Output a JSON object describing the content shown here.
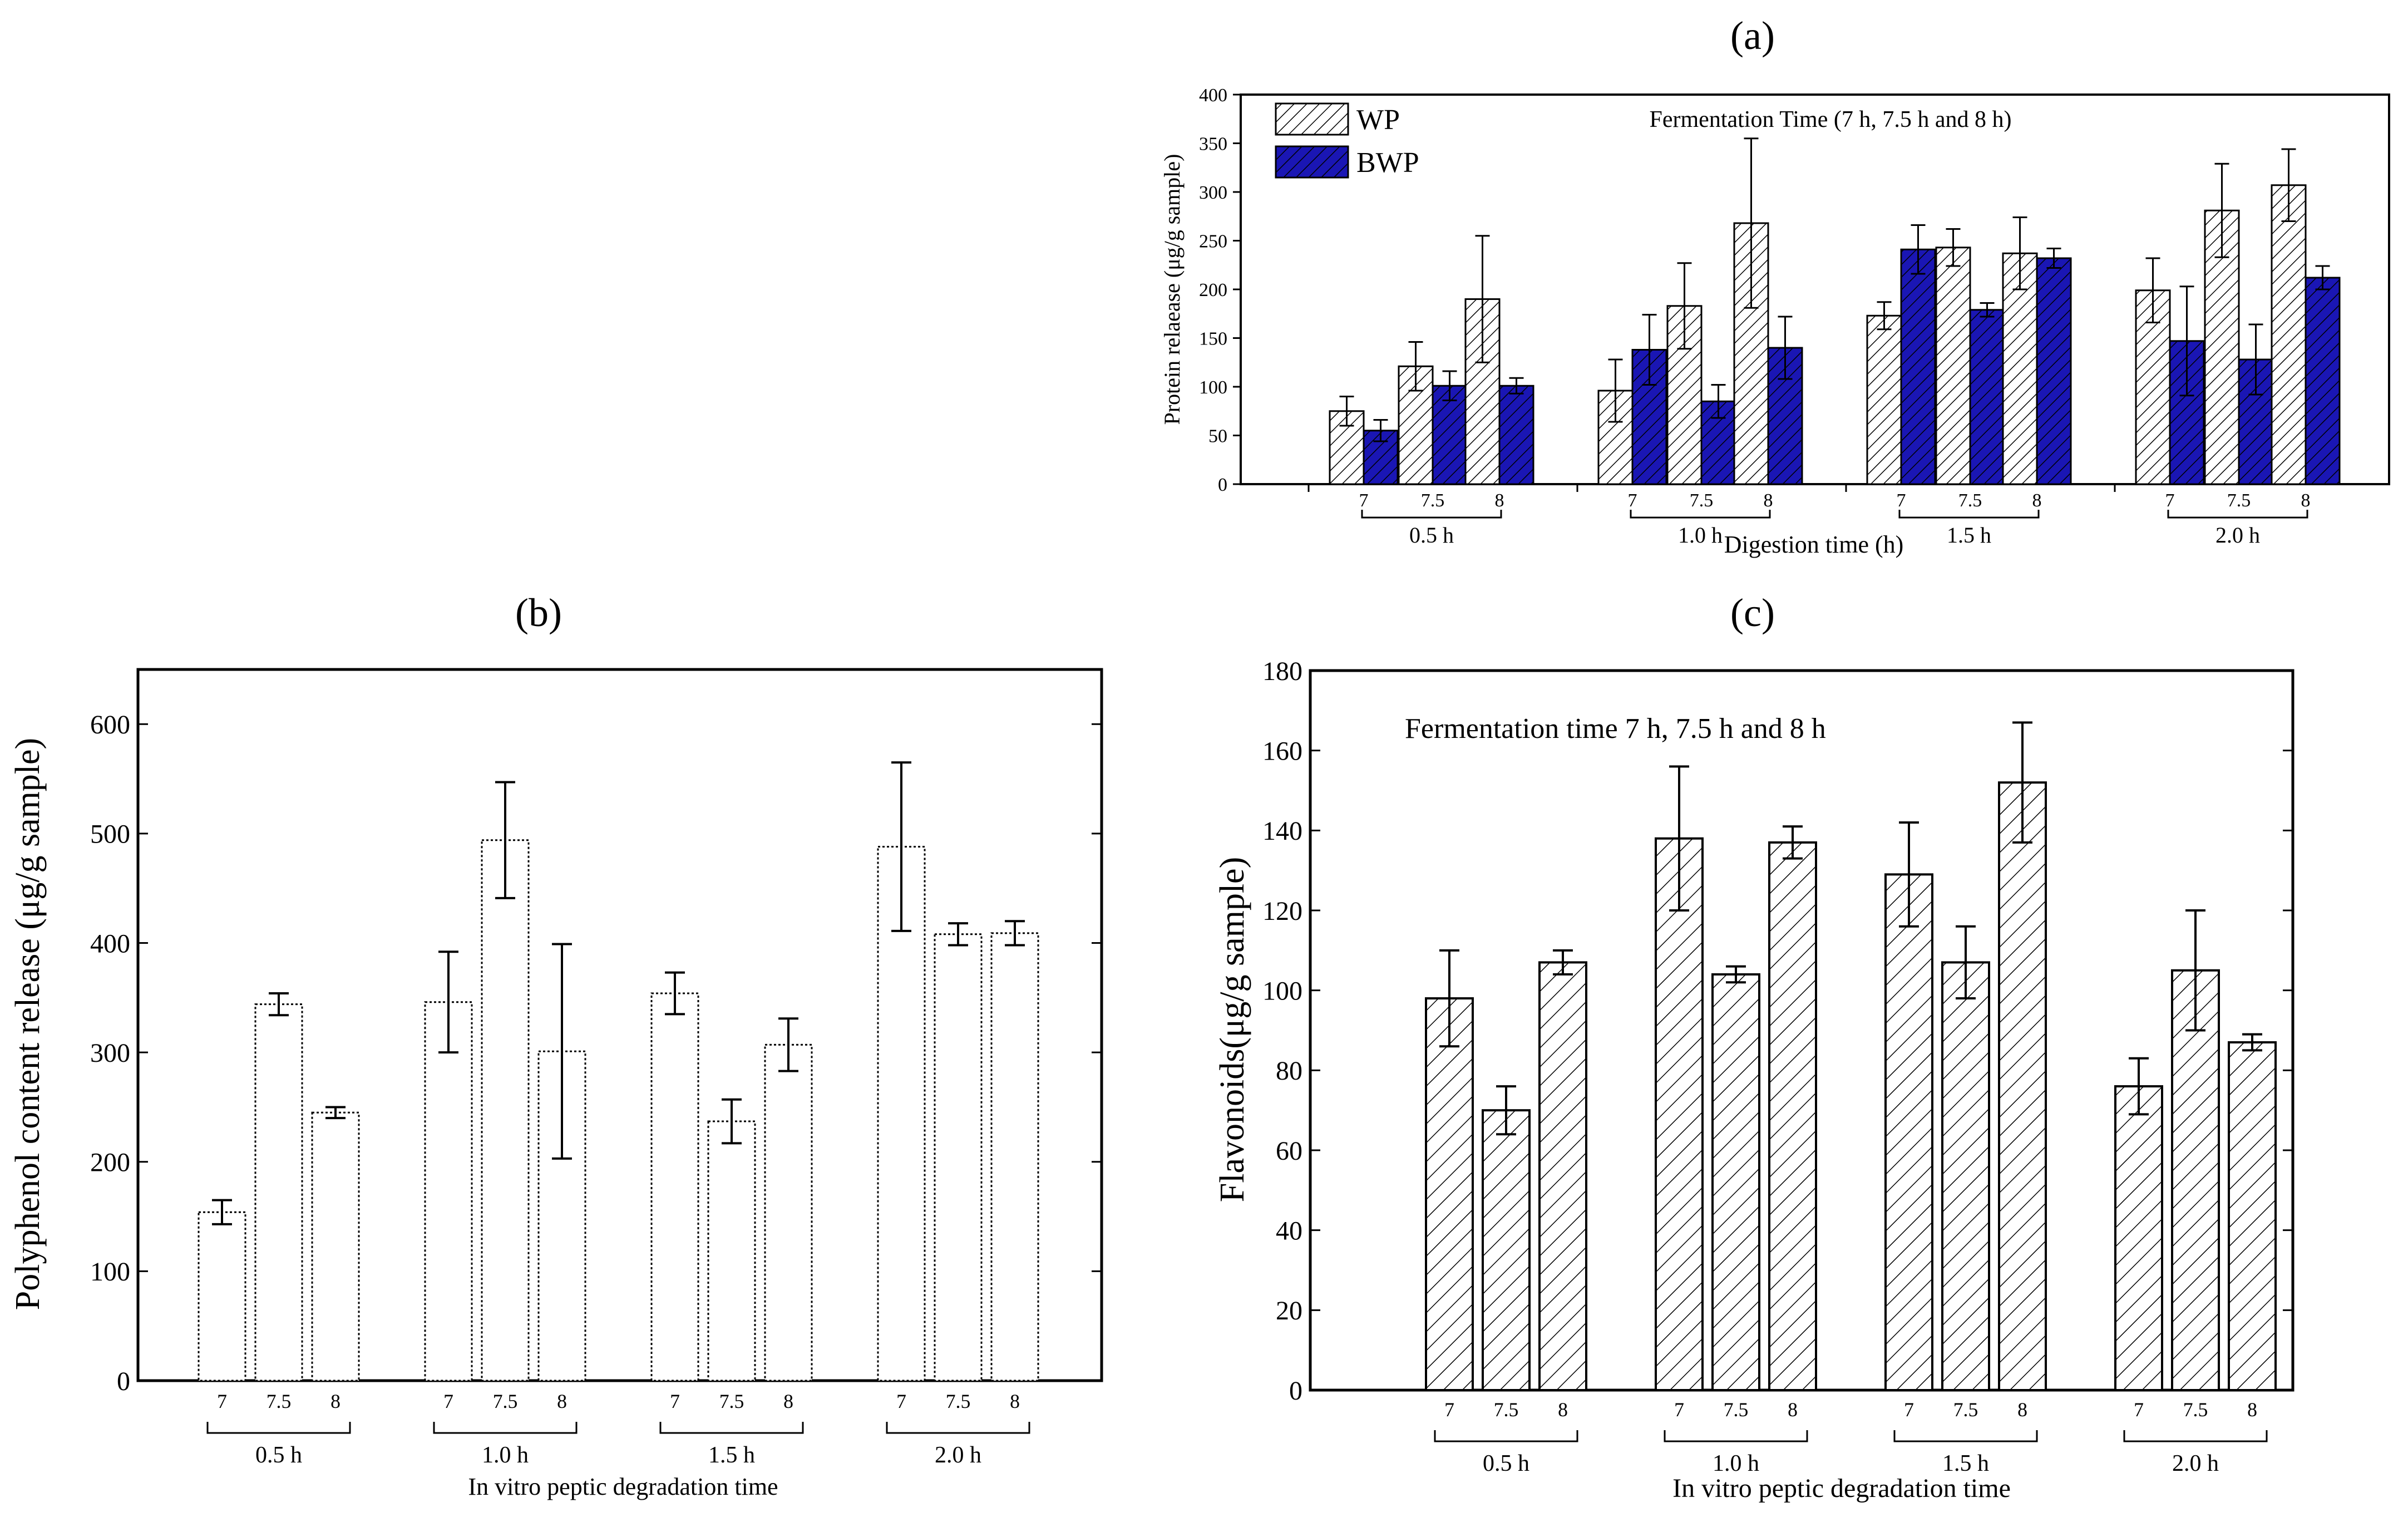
{
  "chart_data": [
    {
      "id": "a",
      "panel_label": "(a)",
      "type": "bar",
      "title": "Fermentation Time (7 h, 7.5 h and 8 h)",
      "xlabel": "Digestion time (h)",
      "ylabel": "Protein relaease (μg/g sample)",
      "ylim": [
        0,
        400
      ],
      "yticks": [
        0,
        50,
        100,
        150,
        200,
        250,
        300,
        350,
        400
      ],
      "legend": {
        "position": "top-left",
        "entries": [
          "WP",
          "BWP"
        ]
      },
      "groups": [
        "0.5 h",
        "1.0 h",
        "1.5 h",
        "2.0 h"
      ],
      "sublabels": [
        "7",
        "7.5",
        "8"
      ],
      "series": [
        {
          "name": "WP",
          "color": "#ffffff",
          "values": [
            [
              75,
              121,
              190
            ],
            [
              96,
              183,
              268
            ],
            [
              173,
              243,
              237
            ],
            [
              199,
              281,
              307
            ]
          ],
          "errors": [
            [
              15,
              25,
              65
            ],
            [
              32,
              44,
              87
            ],
            [
              14,
              19,
              37
            ],
            [
              33,
              48,
              37
            ]
          ]
        },
        {
          "name": "BWP",
          "color": "#1a16b4",
          "values": [
            [
              55,
              101,
              101
            ],
            [
              138,
              85,
              140
            ],
            [
              241,
              179,
              232
            ],
            [
              147,
              128,
              212
            ]
          ],
          "errors": [
            [
              11,
              15,
              8
            ],
            [
              36,
              17,
              32
            ],
            [
              25,
              7,
              10
            ],
            [
              56,
              36,
              12
            ]
          ]
        }
      ]
    },
    {
      "id": "b",
      "panel_label": "(b)",
      "type": "bar",
      "title": "",
      "xlabel": "In vitro peptic degradation time",
      "ylabel": "Polyphenol content release (μg/g sample)",
      "ylim": [
        0,
        650
      ],
      "yticks": [
        0,
        100,
        200,
        300,
        400,
        500,
        600
      ],
      "groups": [
        "0.5 h",
        "1.0 h",
        "1.5 h",
        "2.0 h"
      ],
      "sublabels": [
        "7",
        "7.5",
        "8"
      ],
      "series": [
        {
          "name": "Polyphenol",
          "values": [
            [
              154,
              344,
              245
            ],
            [
              346,
              494,
              301
            ],
            [
              354,
              237,
              307
            ],
            [
              488,
              408,
              409
            ]
          ],
          "errors": [
            [
              11,
              10,
              5
            ],
            [
              46,
              53,
              98
            ],
            [
              19,
              20,
              24
            ],
            [
              77,
              10,
              11
            ]
          ]
        }
      ]
    },
    {
      "id": "c",
      "panel_label": "(c)",
      "type": "bar",
      "title": "Fermentation time 7 h, 7.5 h and 8 h",
      "xlabel": "In vitro peptic degradation time",
      "ylabel": "Flavonoids(μg/g sample)",
      "ylim": [
        0,
        180
      ],
      "yticks": [
        0,
        20,
        40,
        60,
        80,
        100,
        120,
        140,
        160,
        180
      ],
      "groups": [
        "0.5 h",
        "1.0 h",
        "1.5 h",
        "2.0 h"
      ],
      "sublabels": [
        "7",
        "7.5",
        "8"
      ],
      "series": [
        {
          "name": "Flavonoids",
          "values": [
            [
              98,
              70,
              107
            ],
            [
              138,
              104,
              137
            ],
            [
              129,
              107,
              152
            ],
            [
              76,
              105,
              87
            ]
          ],
          "errors": [
            [
              12,
              6,
              3
            ],
            [
              18,
              2,
              4
            ],
            [
              13,
              9,
              15
            ],
            [
              7,
              15,
              2
            ]
          ]
        }
      ]
    }
  ]
}
